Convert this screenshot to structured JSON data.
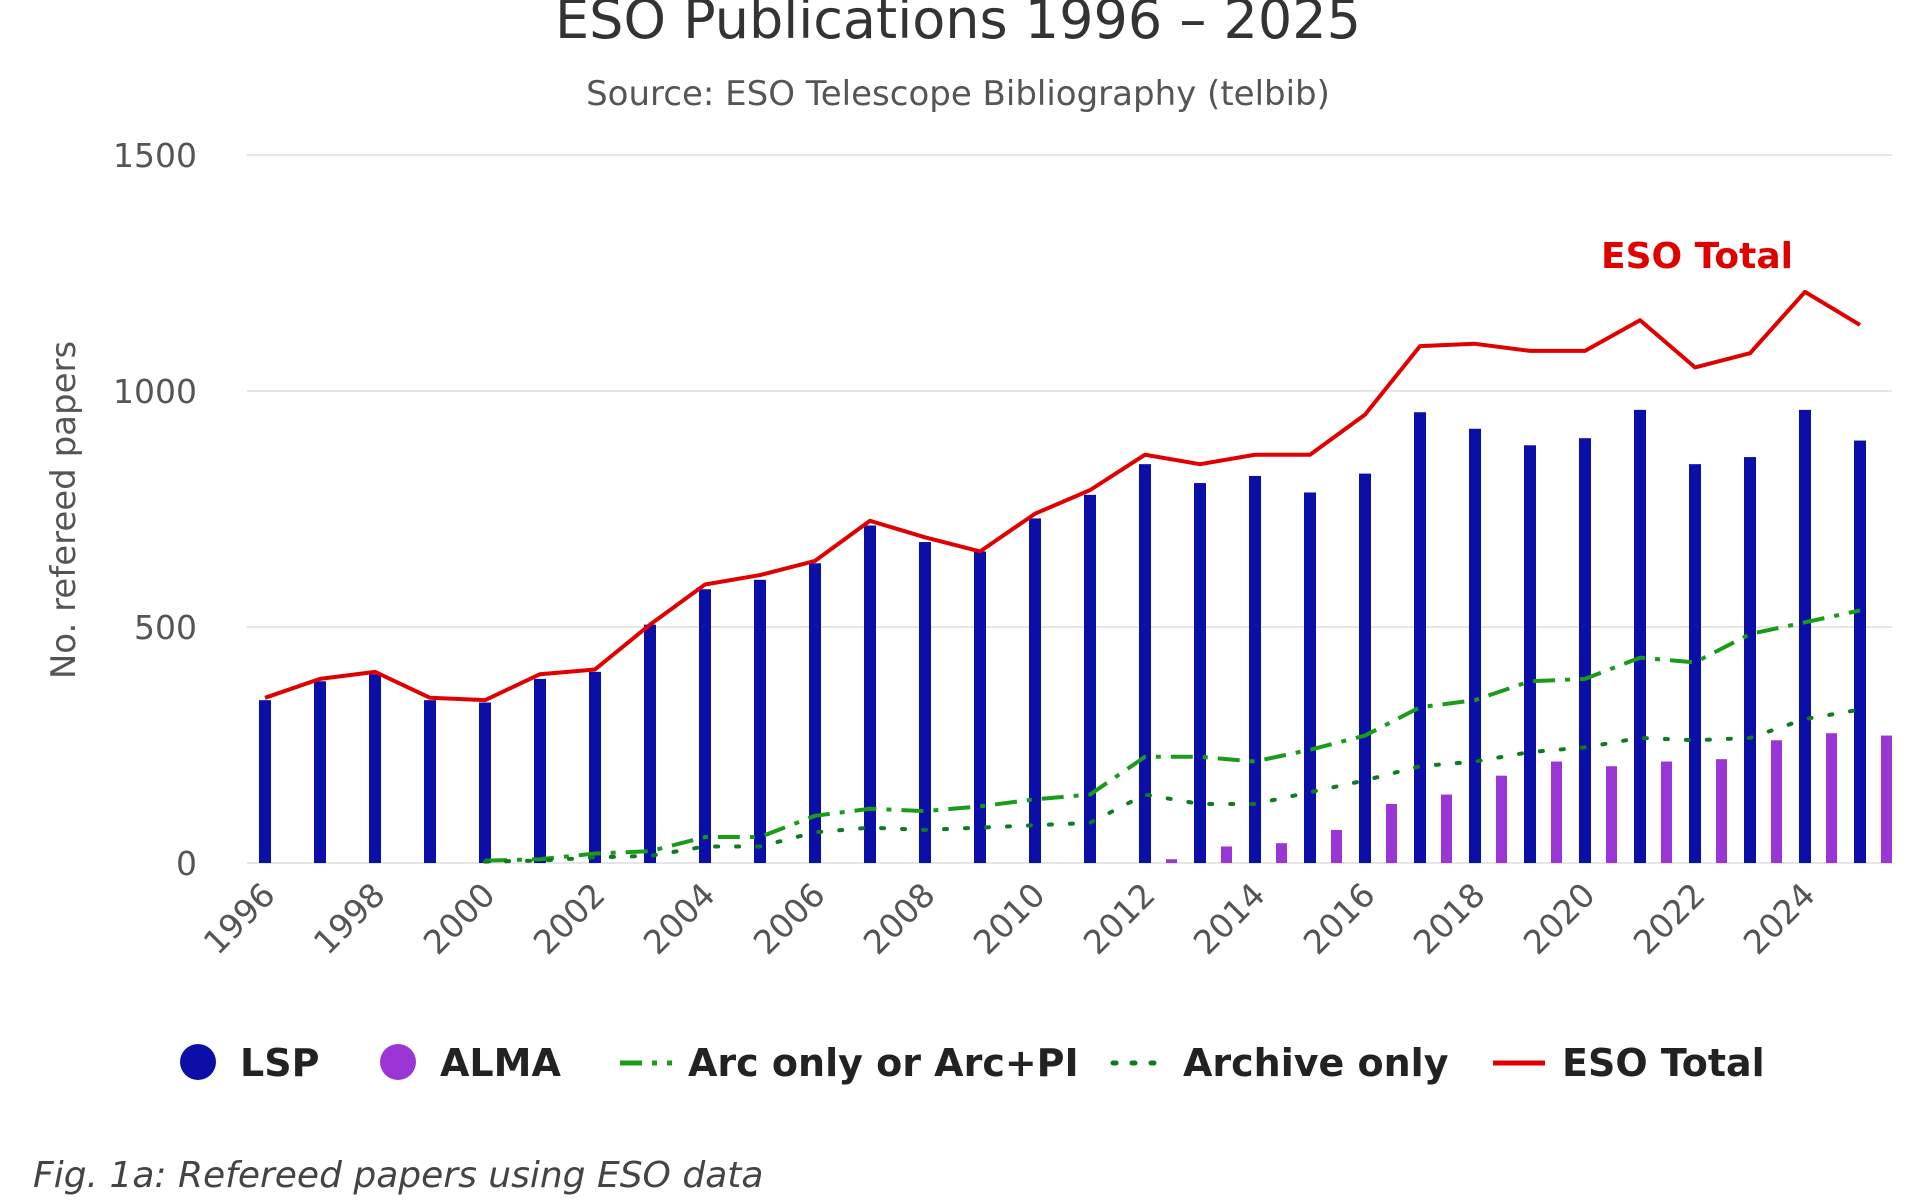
{
  "chart_data": {
    "type": "bar",
    "title": "ESO Publications 1996 – 2025",
    "subtitle": "Source: ESO Telescope Bibliography (telbib)",
    "ylabel": "No. refereed papers",
    "xlabel": "",
    "ylim": [
      0,
      1500
    ],
    "yticks": [
      0,
      500,
      1000,
      1500
    ],
    "grid": true,
    "legend_position": "bottom",
    "categories": [
      "1996",
      "1997",
      "1998",
      "1999",
      "2000",
      "2001",
      "2002",
      "2003",
      "2004",
      "2005",
      "2006",
      "2007",
      "2008",
      "2009",
      "2010",
      "2011",
      "2012",
      "2013",
      "2014",
      "2015",
      "2016",
      "2017",
      "2018",
      "2019",
      "2020",
      "2021",
      "2022",
      "2023",
      "2024",
      "2025"
    ],
    "xtick_labels": [
      "1996",
      "1998",
      "2000",
      "2002",
      "2004",
      "2006",
      "2008",
      "2010",
      "2012",
      "2014",
      "2016",
      "2018",
      "2020",
      "2022",
      "2024"
    ],
    "series": [
      {
        "name": "LSP",
        "kind": "bar",
        "color": "#0b0fa8",
        "values": [
          345,
          385,
          400,
          345,
          340,
          390,
          405,
          505,
          580,
          600,
          635,
          715,
          680,
          660,
          730,
          780,
          845,
          805,
          820,
          785,
          825,
          955,
          920,
          885,
          900,
          960,
          845,
          860,
          960,
          895
        ]
      },
      {
        "name": "ALMA",
        "kind": "bar",
        "color": "#9b36d6",
        "values": [
          0,
          0,
          0,
          0,
          0,
          0,
          0,
          0,
          0,
          0,
          0,
          0,
          0,
          0,
          0,
          0,
          8,
          35,
          42,
          70,
          125,
          145,
          185,
          215,
          205,
          215,
          220,
          260,
          275,
          270
        ]
      },
      {
        "name": "Arc only or Arc+PI",
        "kind": "line-dashdot",
        "color": "#1a9c1a",
        "values": [
          null,
          null,
          null,
          null,
          5,
          8,
          20,
          25,
          55,
          55,
          100,
          115,
          110,
          120,
          135,
          145,
          225,
          225,
          215,
          240,
          270,
          330,
          345,
          385,
          390,
          435,
          425,
          485,
          510,
          535
        ]
      },
      {
        "name": "Archive only",
        "kind": "line-dotted",
        "color": "#0f7a1f",
        "values": [
          null,
          null,
          null,
          null,
          3,
          5,
          12,
          15,
          35,
          35,
          65,
          75,
          70,
          75,
          80,
          85,
          145,
          125,
          125,
          150,
          175,
          205,
          215,
          235,
          245,
          265,
          260,
          265,
          305,
          325
        ]
      },
      {
        "name": "ESO Total",
        "kind": "line",
        "color": "#e00000",
        "values": [
          350,
          390,
          405,
          350,
          345,
          400,
          410,
          505,
          590,
          610,
          640,
          725,
          690,
          660,
          740,
          790,
          865,
          845,
          865,
          865,
          950,
          1095,
          1100,
          1085,
          1085,
          1150,
          1050,
          1080,
          1210,
          1140
        ]
      }
    ],
    "annotations": [
      {
        "text": "ESO Total",
        "anchor_year": "2024"
      }
    ]
  },
  "caption": "Fig. 1a: Refereed papers using ESO data"
}
